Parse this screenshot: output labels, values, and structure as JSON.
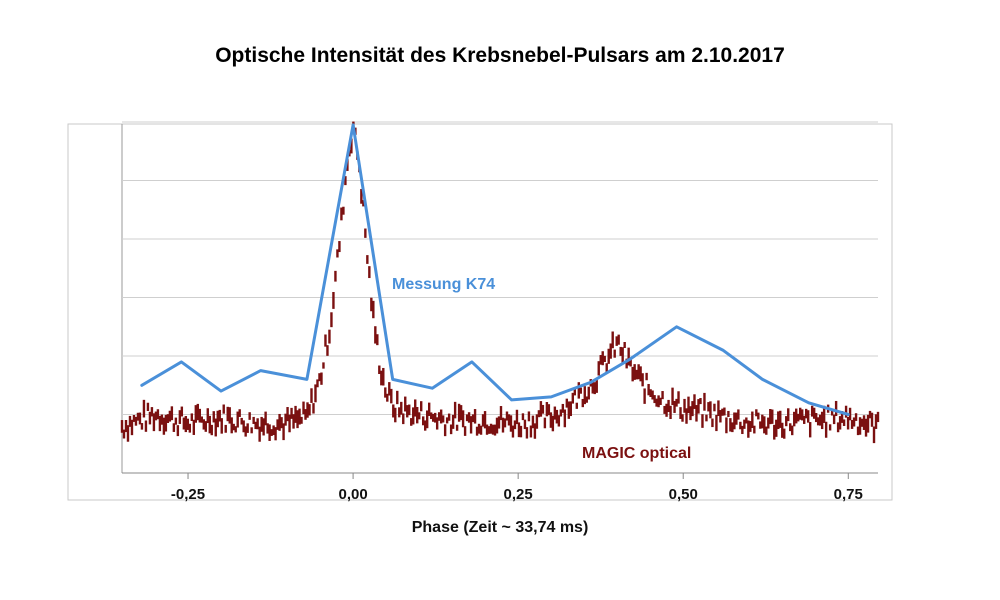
{
  "chart_data": {
    "type": "line",
    "title": "Optische Intensität des Krebsnebel-Pulsars am 2.10.2017",
    "xlabel": "Phase (Zeit ~ 33,74 ms)",
    "ylabel": "",
    "xlim": [
      -0.35,
      0.795
    ],
    "ylim": [
      0,
      6
    ],
    "grid": true,
    "x_ticks": [
      -0.25,
      0.0,
      0.25,
      0.5,
      0.75
    ],
    "x_tick_labels": [
      "-0,25",
      "0,00",
      "0,25",
      "0,50",
      "0,75"
    ],
    "series": [
      {
        "name": "Messung K74",
        "color": "#4a90d9",
        "style": "line",
        "x": [
          -0.32,
          -0.26,
          -0.2,
          -0.14,
          -0.07,
          0.0,
          0.06,
          0.12,
          0.18,
          0.24,
          0.3,
          0.36,
          0.42,
          0.49,
          0.56,
          0.62,
          0.69,
          0.75
        ],
        "y": [
          1.5,
          1.9,
          1.4,
          1.75,
          1.6,
          5.95,
          1.6,
          1.45,
          1.9,
          1.25,
          1.3,
          1.55,
          1.95,
          2.5,
          2.1,
          1.6,
          1.2,
          1.0
        ]
      },
      {
        "name": "MAGIC optical",
        "color": "#7b1010",
        "style": "points",
        "x": [
          -0.35,
          -0.3,
          -0.25,
          -0.2,
          -0.15,
          -0.1,
          -0.07,
          -0.05,
          -0.035,
          -0.02,
          -0.01,
          0.0,
          0.01,
          0.02,
          0.03,
          0.04,
          0.05,
          0.06,
          0.08,
          0.1,
          0.15,
          0.2,
          0.25,
          0.3,
          0.33,
          0.36,
          0.38,
          0.39,
          0.4,
          0.41,
          0.42,
          0.44,
          0.47,
          0.5,
          0.55,
          0.6,
          0.65,
          0.7,
          0.75,
          0.795
        ],
        "y": [
          0.8,
          1.0,
          0.85,
          0.95,
          0.85,
          0.85,
          0.95,
          1.6,
          2.5,
          4.0,
          5.2,
          5.95,
          5.2,
          3.9,
          2.7,
          1.9,
          1.4,
          1.15,
          1.05,
          1.0,
          0.9,
          0.9,
          0.85,
          0.95,
          1.2,
          1.5,
          1.85,
          2.05,
          2.2,
          2.05,
          1.8,
          1.5,
          1.25,
          1.1,
          1.0,
          0.85,
          0.85,
          0.9,
          0.95,
          0.8
        ]
      }
    ],
    "series_labels": [
      "Messung K74",
      "MAGIC optical"
    ]
  }
}
